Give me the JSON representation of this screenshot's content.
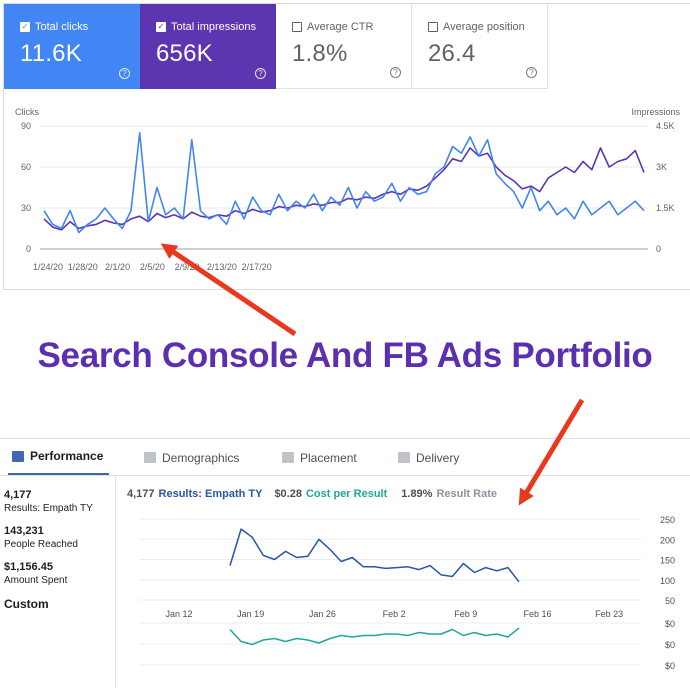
{
  "search_console": {
    "cards": [
      {
        "label": "Total clicks",
        "value": "11.6K",
        "checked": true,
        "color": "#4285f4"
      },
      {
        "label": "Total impressions",
        "value": "656K",
        "checked": true,
        "color": "#5e35b1"
      },
      {
        "label": "Average CTR",
        "value": "1.8%",
        "checked": false
      },
      {
        "label": "Average position",
        "value": "26.4",
        "checked": false
      }
    ],
    "help_glyph": "?",
    "check_glyph": "✓"
  },
  "headline": "Search Console And FB Ads Portfolio",
  "fb_ads": {
    "tabs": [
      {
        "label": "Performance",
        "icon": "bar-chart-icon",
        "active": true
      },
      {
        "label": "Demographics",
        "icon": "people-icon",
        "active": false
      },
      {
        "label": "Placement",
        "icon": "placement-icon",
        "active": false
      },
      {
        "label": "Delivery",
        "icon": "delivery-chart-icon",
        "active": false
      }
    ],
    "stats": [
      {
        "value": "4,177",
        "label": "Results: Empath TY"
      },
      {
        "value": "143,231",
        "label": "People Reached"
      },
      {
        "value": "$1,156.45",
        "label": "Amount Spent"
      }
    ],
    "custom_label": "Custom",
    "legend": {
      "results_value": "4,177",
      "results_label": "Results: Empath TY",
      "cpr_value": "$0.28",
      "cpr_label": "Cost per Result",
      "rr_value": "1.89%",
      "rr_label": "Result Rate"
    },
    "colors": {
      "results": "#2857a4",
      "cpr": "#1ea89a"
    }
  },
  "chart_data": [
    {
      "type": "line",
      "ylabel": "Clicks",
      "ylabel_right": "Impressions",
      "x_ticks": [
        "1/24/20",
        "1/28/20",
        "2/1/20",
        "2/5/20",
        "2/9/20",
        "2/13/20",
        "2/17/20"
      ],
      "y_ticks_left": [
        "90",
        "60",
        "30",
        "0"
      ],
      "y_ticks_right": [
        "4.5K",
        "3K",
        "1.5K",
        "0"
      ],
      "ylim": [
        0,
        90
      ],
      "y2lim": [
        0,
        4500
      ],
      "series": [
        {
          "name": "Clicks",
          "color": "#4285f4",
          "axis": "left",
          "values": [
            28,
            18,
            15,
            28,
            12,
            18,
            22,
            30,
            22,
            15,
            28,
            85,
            20,
            45,
            25,
            30,
            22,
            80,
            28,
            22,
            25,
            18,
            35,
            22,
            38,
            28,
            25,
            40,
            28,
            35,
            30,
            40,
            28,
            38,
            32,
            45,
            30,
            42,
            35,
            38,
            48,
            35,
            45,
            40,
            42,
            55,
            60,
            75,
            70,
            82,
            68,
            80,
            55,
            48,
            42,
            30,
            45,
            28,
            35,
            25,
            30,
            22,
            35,
            25,
            30,
            35,
            25,
            30,
            35,
            28
          ]
        },
        {
          "name": "Impressions",
          "color": "#5e35b1",
          "axis": "right",
          "values": [
            1100,
            800,
            700,
            1000,
            750,
            850,
            900,
            1050,
            950,
            900,
            1100,
            1200,
            1000,
            1300,
            1150,
            1250,
            1100,
            1350,
            1200,
            1150,
            1250,
            1200,
            1400,
            1300,
            1450,
            1350,
            1400,
            1550,
            1500,
            1600,
            1550,
            1650,
            1600,
            1700,
            1700,
            1850,
            1800,
            1900,
            1850,
            2000,
            2100,
            2000,
            2200,
            2150,
            2300,
            2600,
            2900,
            3300,
            3200,
            3700,
            3400,
            3500,
            3000,
            2700,
            2500,
            2200,
            2300,
            2100,
            2600,
            2800,
            3000,
            2800,
            3200,
            2900,
            3700,
            3000,
            3200,
            3300,
            3600,
            2800
          ]
        }
      ]
    },
    {
      "type": "line",
      "x_ticks": [
        "Jan 12",
        "Jan 19",
        "Jan 26",
        "Feb 2",
        "Feb 9",
        "Feb 16",
        "Feb 23"
      ],
      "y_ticks_right": [
        "250",
        "200",
        "150",
        "100",
        "50"
      ],
      "ylim": [
        50,
        250
      ],
      "series": [
        {
          "name": "Results: Empath TY",
          "color": "#2857a4",
          "values": [
            135,
            225,
            205,
            160,
            150,
            170,
            155,
            158,
            200,
            175,
            145,
            155,
            132,
            132,
            128,
            130,
            132,
            125,
            135,
            112,
            108,
            140,
            118,
            130,
            122,
            130,
            95
          ]
        }
      ]
    },
    {
      "type": "line",
      "y_ticks_right": [
        "$0",
        "$0",
        "$0"
      ],
      "series": [
        {
          "name": "Cost per Result",
          "color": "#1ea89a",
          "values": [
            0.33,
            0.25,
            0.23,
            0.26,
            0.27,
            0.25,
            0.27,
            0.26,
            0.24,
            0.27,
            0.29,
            0.28,
            0.29,
            0.29,
            0.3,
            0.3,
            0.29,
            0.31,
            0.3,
            0.3,
            0.33,
            0.29,
            0.31,
            0.29,
            0.3,
            0.28,
            0.34
          ]
        }
      ]
    }
  ]
}
